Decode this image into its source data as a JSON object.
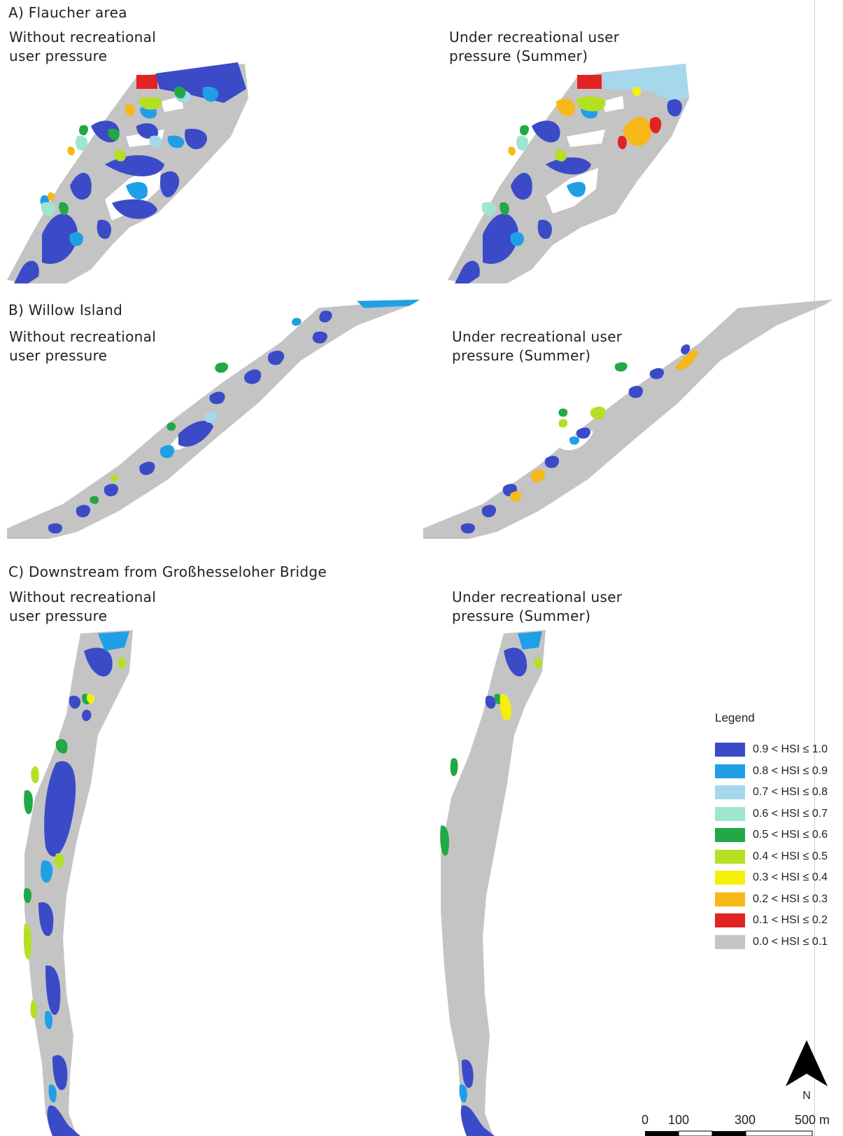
{
  "sections": [
    {
      "title": "A) Flaucher area",
      "left_label": "Without recreational\nuser pressure",
      "right_label": "Under recreational user\npressure (Summer)"
    },
    {
      "title": "B) Willow Island",
      "left_label": "Without recreational\nuser pressure",
      "right_label": "Under recreational user\npressure (Summer)"
    },
    {
      "title": "C) Downstream from Großhesseloher Bridge",
      "left_label": "Without recreational\nuser pressure",
      "right_label": "Under recreational user\npressure (Summer)"
    }
  ],
  "legend": {
    "title": "Legend",
    "items": [
      {
        "label": "0.9 < HSI ≤ 1.0",
        "color": "#3b4bc8"
      },
      {
        "label": "0.8 < HSI ≤ 0.9",
        "color": "#1fa0e6"
      },
      {
        "label": "0.7 < HSI ≤ 0.8",
        "color": "#a5d8ec"
      },
      {
        "label": "0.6 < HSI ≤ 0.7",
        "color": "#9ee6d0"
      },
      {
        "label": "0.5 < HSI ≤ 0.6",
        "color": "#22a846"
      },
      {
        "label": "0.4 < HSI ≤ 0.5",
        "color": "#b4e024"
      },
      {
        "label": "0.3 < HSI ≤ 0.4",
        "color": "#f5f00a"
      },
      {
        "label": "0.2 < HSI ≤ 0.3",
        "color": "#f7b818"
      },
      {
        "label": "0.1 < HSI ≤ 0.2",
        "color": "#e32222"
      },
      {
        "label": "0.0 < HSI ≤ 0.1",
        "color": "#c4c4c4"
      }
    ]
  },
  "north_arrow": {
    "label": "N"
  },
  "scale_bar": {
    "ticks": [
      "0",
      "100",
      "300",
      "500 m"
    ]
  }
}
